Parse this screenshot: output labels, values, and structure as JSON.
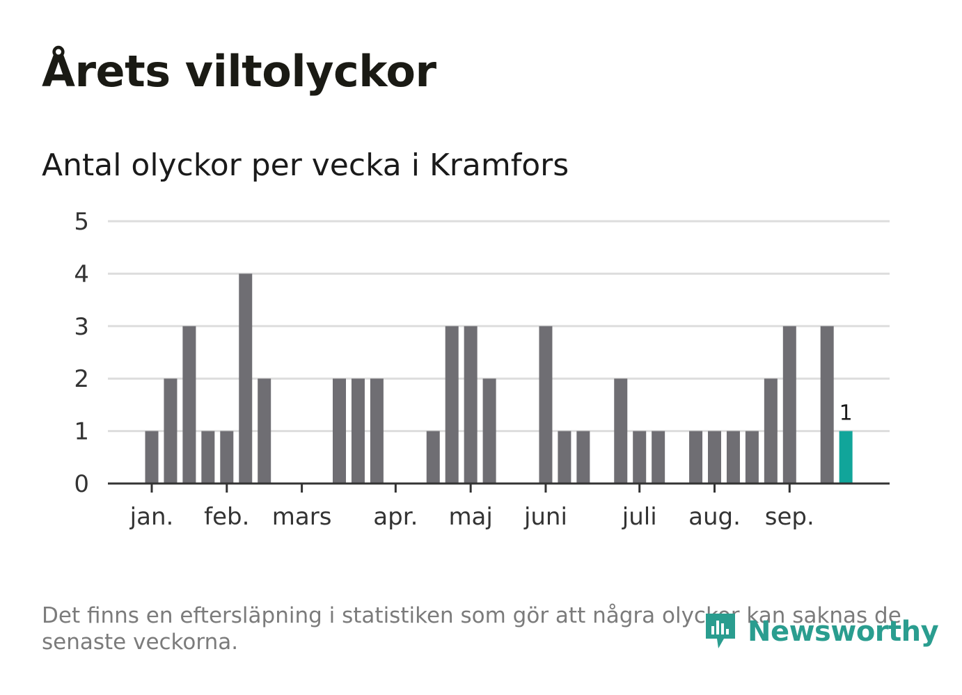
{
  "title": "Årets viltolyckor",
  "subtitle": "Antal olyckor per vecka i Kramfors",
  "footnote": "Det finns en eftersläpning i statistiken som gör att några olyckor kan saknas de senaste veckorna.",
  "logo": {
    "text": "Newsworthy",
    "icon": "newsworthy-logo-icon",
    "color": "#2a9d8f"
  },
  "colors": {
    "bar": "#6f6e73",
    "highlight": "#11a59a",
    "grid": "#dddddd",
    "axis": "#333333"
  },
  "chart_data": {
    "type": "bar",
    "title": "Antal olyckor per vecka i Kramfors",
    "xlabel": "",
    "ylabel": "",
    "ylim": [
      0,
      5
    ],
    "yticks": [
      "0",
      "1",
      "2",
      "3",
      "4",
      "5"
    ],
    "grid": true,
    "weeks": [
      1,
      2,
      3,
      4,
      5,
      6,
      7,
      8,
      9,
      10,
      11,
      12,
      13,
      14,
      15,
      16,
      17,
      18,
      19,
      20,
      21,
      22,
      23,
      24,
      25,
      26,
      27,
      28,
      29,
      30,
      31,
      32,
      33,
      34,
      35,
      36,
      37,
      38,
      39,
      40,
      41
    ],
    "values": [
      0,
      0,
      1,
      2,
      3,
      1,
      1,
      4,
      2,
      0,
      0,
      0,
      2,
      2,
      2,
      0,
      0,
      1,
      3,
      3,
      2,
      0,
      0,
      3,
      1,
      1,
      0,
      2,
      1,
      1,
      0,
      1,
      1,
      1,
      1,
      2,
      3,
      0,
      3,
      1,
      0
    ],
    "highlight_week": 40,
    "highlight_label": "1",
    "months": [
      {
        "label": "jan.",
        "week": 3
      },
      {
        "label": "feb.",
        "week": 7
      },
      {
        "label": "mars",
        "week": 11
      },
      {
        "label": "apr.",
        "week": 16
      },
      {
        "label": "maj",
        "week": 20
      },
      {
        "label": "juni",
        "week": 24
      },
      {
        "label": "juli",
        "week": 29
      },
      {
        "label": "aug.",
        "week": 33
      },
      {
        "label": "sep.",
        "week": 37
      }
    ]
  }
}
